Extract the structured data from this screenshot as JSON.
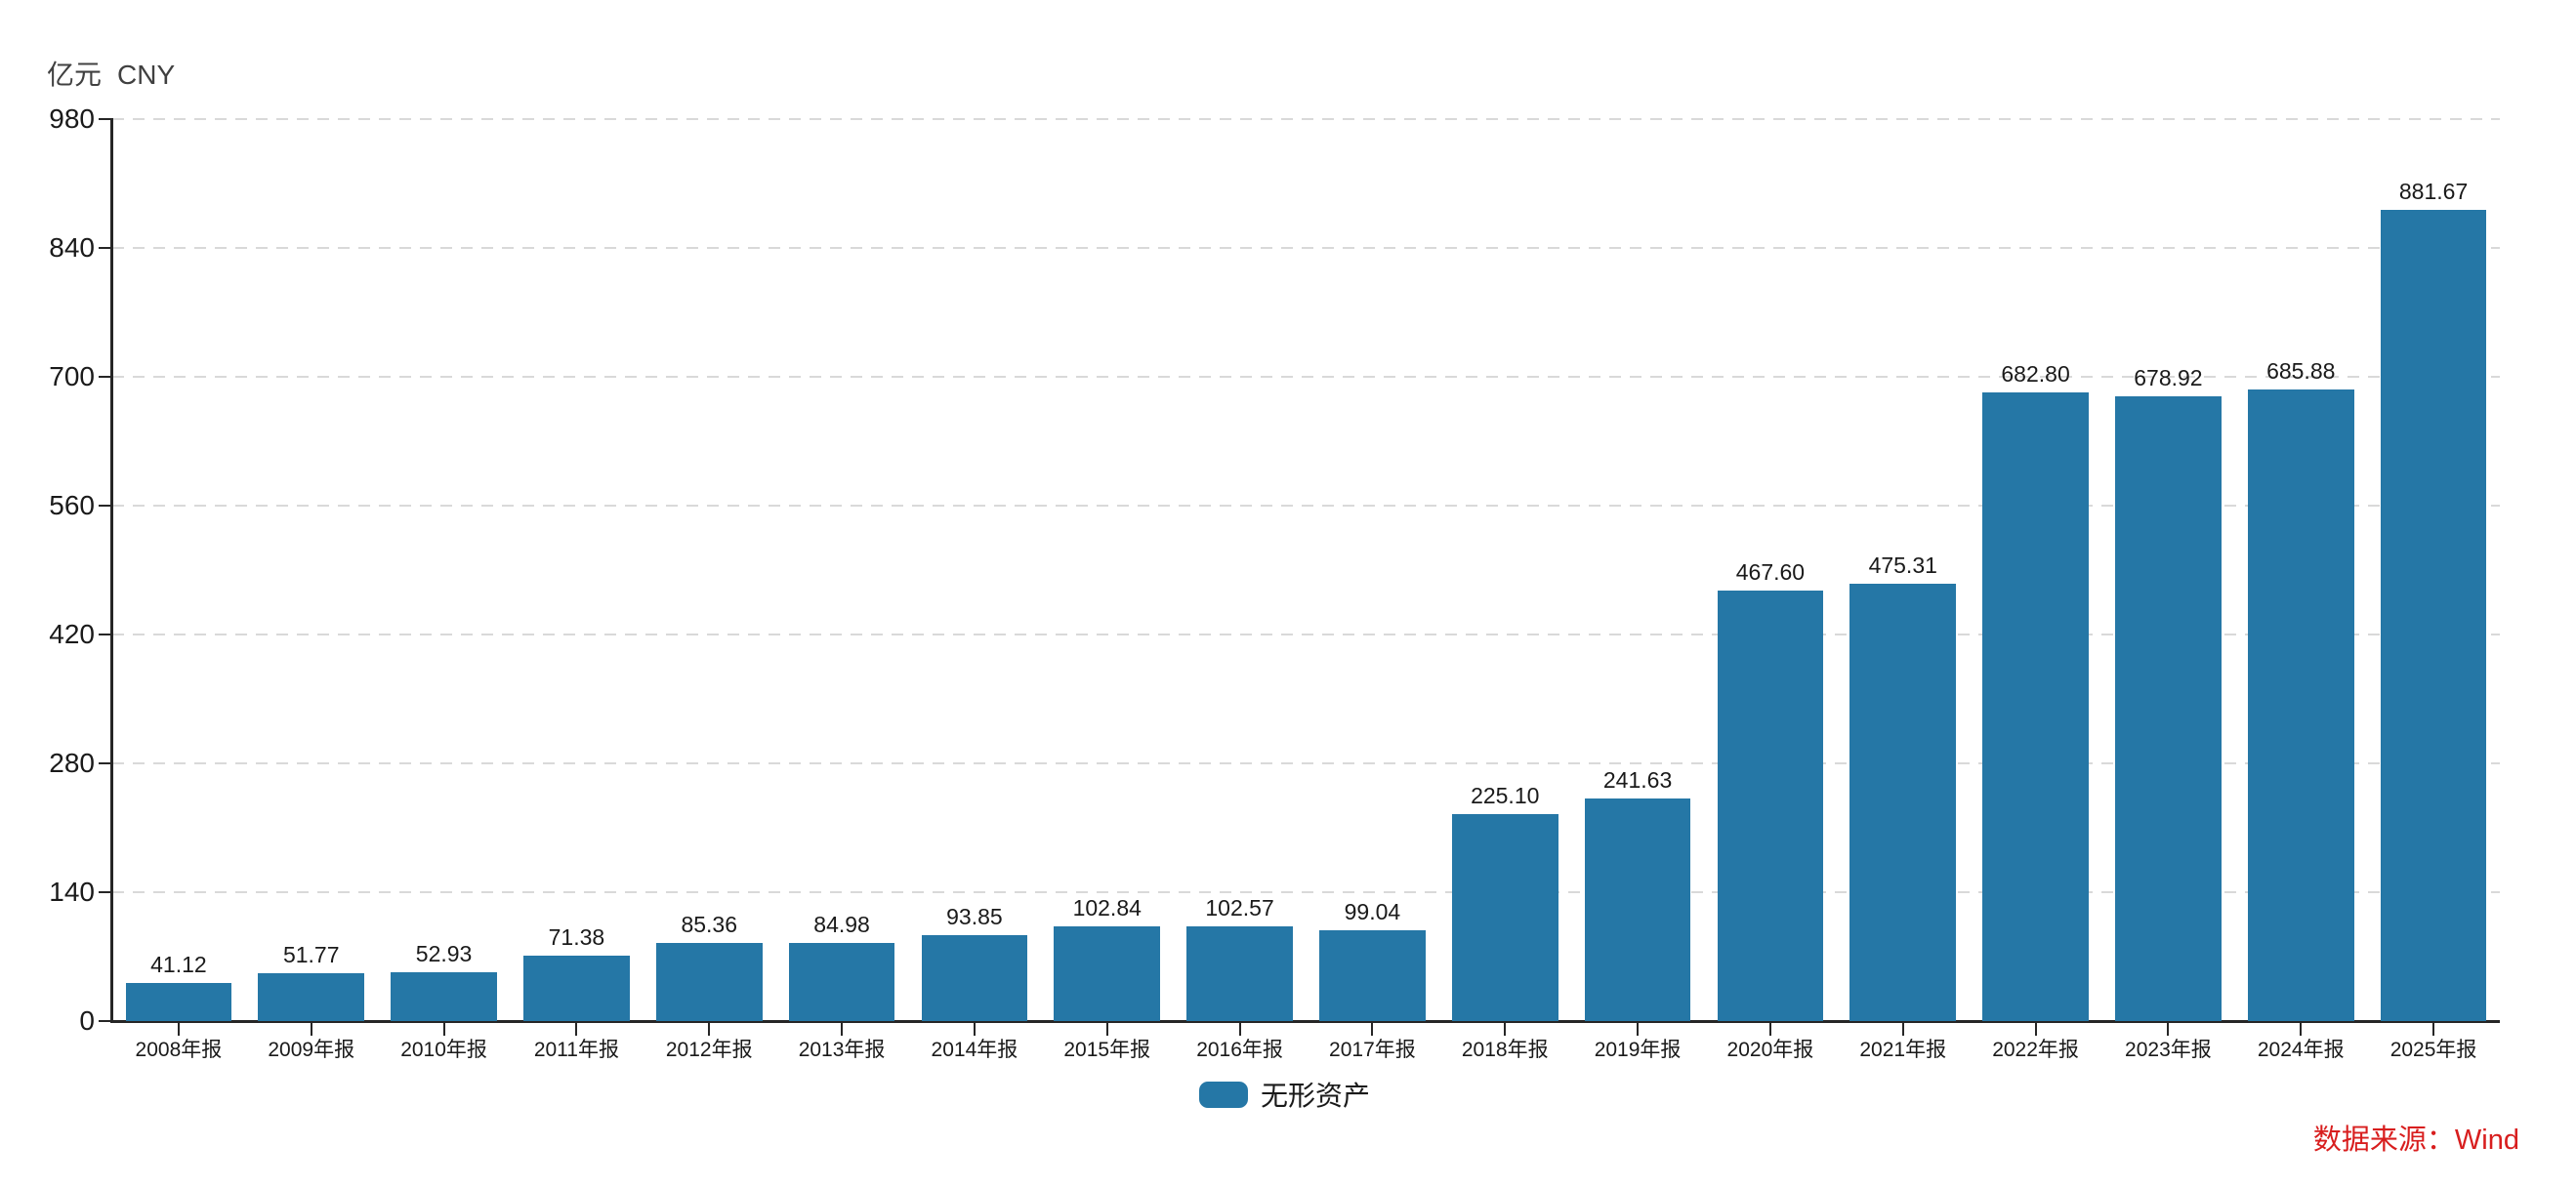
{
  "chart_data": {
    "type": "bar",
    "title": "",
    "unit_label": "亿元",
    "currency_label": "CNY",
    "xlabel": "",
    "ylabel": "",
    "ylim": [
      0,
      980
    ],
    "yticks": [
      0,
      140,
      280,
      420,
      560,
      700,
      840,
      980
    ],
    "grid": "horizontal-dashed",
    "legend_position": "bottom-center",
    "categories": [
      "2008年报",
      "2009年报",
      "2010年报",
      "2011年报",
      "2012年报",
      "2013年报",
      "2014年报",
      "2015年报",
      "2016年报",
      "2017年报",
      "2018年报",
      "2019年报",
      "2020年报",
      "2021年报",
      "2022年报",
      "2023年报",
      "2024年报",
      "2025年报"
    ],
    "series": [
      {
        "name": "无形资产",
        "values": [
          41.12,
          51.77,
          52.93,
          71.38,
          85.36,
          84.98,
          93.85,
          102.84,
          102.57,
          99.04,
          225.1,
          241.63,
          467.6,
          475.31,
          682.8,
          678.92,
          685.88,
          881.67
        ],
        "value_labels": [
          "41.12",
          "51.77",
          "52.93",
          "71.38",
          "85.36",
          "84.98",
          "93.85",
          "102.84",
          "102.57",
          "99.04",
          "225.10",
          "241.63",
          "467.60",
          "475.31",
          "682.80",
          "678.92",
          "685.88",
          "881.67"
        ]
      }
    ]
  },
  "legend": {
    "label": "无形资产"
  },
  "source": {
    "label": "数据来源：Wind"
  },
  "colors": {
    "bar": "#2577a6",
    "axis": "#262626",
    "gridline": "#d9d9d9",
    "text": "#1a1a1a",
    "unit_text": "#404040",
    "source_red": "#d81e1e",
    "background": "#ffffff"
  }
}
